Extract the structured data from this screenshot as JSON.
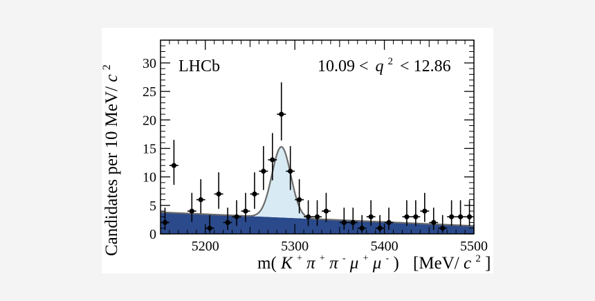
{
  "chart_data": {
    "type": "scatter",
    "experiment_label": "LHCb",
    "region_label": "10.09 < q² < 12.86",
    "region_label_parts": {
      "low": "10.09 <",
      "var": "q",
      "power": "2",
      "high": "< 12.86"
    },
    "ylabel": "Candidates per 10 MeV/c²",
    "ylabel_parts": {
      "main": "Candidates per 10 MeV/",
      "unit_c": "c",
      "unit_pow": "2"
    },
    "xlabel": "m(K⁺π⁺π⁻μ⁺μ⁻)  [MeV/c²]",
    "xlabel_parts": {
      "pre": "m(",
      "k": "K",
      "pi": "π",
      "mu": "μ",
      "plus": "+",
      "minus": "-",
      "close": ")",
      "units_open": "[MeV/",
      "c": "c",
      "pow": "2",
      "units_close": "]"
    },
    "xlim": [
      5150,
      5500
    ],
    "ylim": [
      0,
      34
    ],
    "x_ticks": [
      5200,
      5300,
      5400,
      5500
    ],
    "y_ticks": [
      0,
      5,
      10,
      15,
      20,
      25,
      30
    ],
    "bin_width": 10,
    "series": [
      {
        "name": "Data",
        "x": [
          5155,
          5165,
          5185,
          5195,
          5205,
          5215,
          5225,
          5235,
          5245,
          5255,
          5265,
          5275,
          5285,
          5295,
          5305,
          5315,
          5325,
          5335,
          5355,
          5365,
          5375,
          5385,
          5395,
          5405,
          5425,
          5435,
          5445,
          5455,
          5465,
          5475,
          5485,
          5495
        ],
        "y": [
          2,
          12,
          4,
          6,
          1,
          7,
          2,
          3,
          4,
          7,
          11,
          13,
          21,
          11,
          6,
          3,
          3,
          4,
          2,
          2,
          1,
          3,
          1,
          2,
          3,
          3,
          4,
          2,
          1,
          3,
          3,
          3
        ],
        "yerr_up": [
          2.6,
          4.5,
          3.2,
          3.6,
          2.3,
          3.8,
          2.6,
          2.9,
          3.2,
          3.8,
          4.4,
          4.7,
          5.6,
          4.4,
          3.6,
          2.9,
          2.9,
          3.2,
          2.6,
          2.6,
          2.3,
          2.9,
          2.3,
          2.6,
          2.9,
          2.9,
          3.2,
          2.6,
          2.3,
          2.9,
          2.9,
          2.9
        ],
        "yerr_down": [
          1.3,
          3.4,
          1.9,
          2.4,
          0.8,
          2.6,
          1.3,
          1.6,
          1.9,
          2.6,
          3.3,
          3.6,
          4.6,
          3.3,
          2.4,
          1.6,
          1.6,
          1.9,
          1.3,
          1.3,
          0.8,
          1.6,
          0.8,
          1.3,
          1.6,
          1.6,
          1.9,
          1.3,
          0.8,
          1.6,
          1.6,
          1.6
        ]
      },
      {
        "name": "Combinatorial background",
        "x": [
          5150,
          5500
        ],
        "y": [
          3.8,
          1.4
        ]
      },
      {
        "name": "Total fit",
        "signal_mean": 5285,
        "signal_sigma": 10.5,
        "signal_peak": 12.4,
        "signal_range": [
          5232,
          5338
        ]
      }
    ],
    "colors": {
      "background_fill": "#2b4a8c",
      "signal_fill": "#d8eaf3",
      "fit_line": "#6b6b6b",
      "data_points": "#000000"
    }
  }
}
